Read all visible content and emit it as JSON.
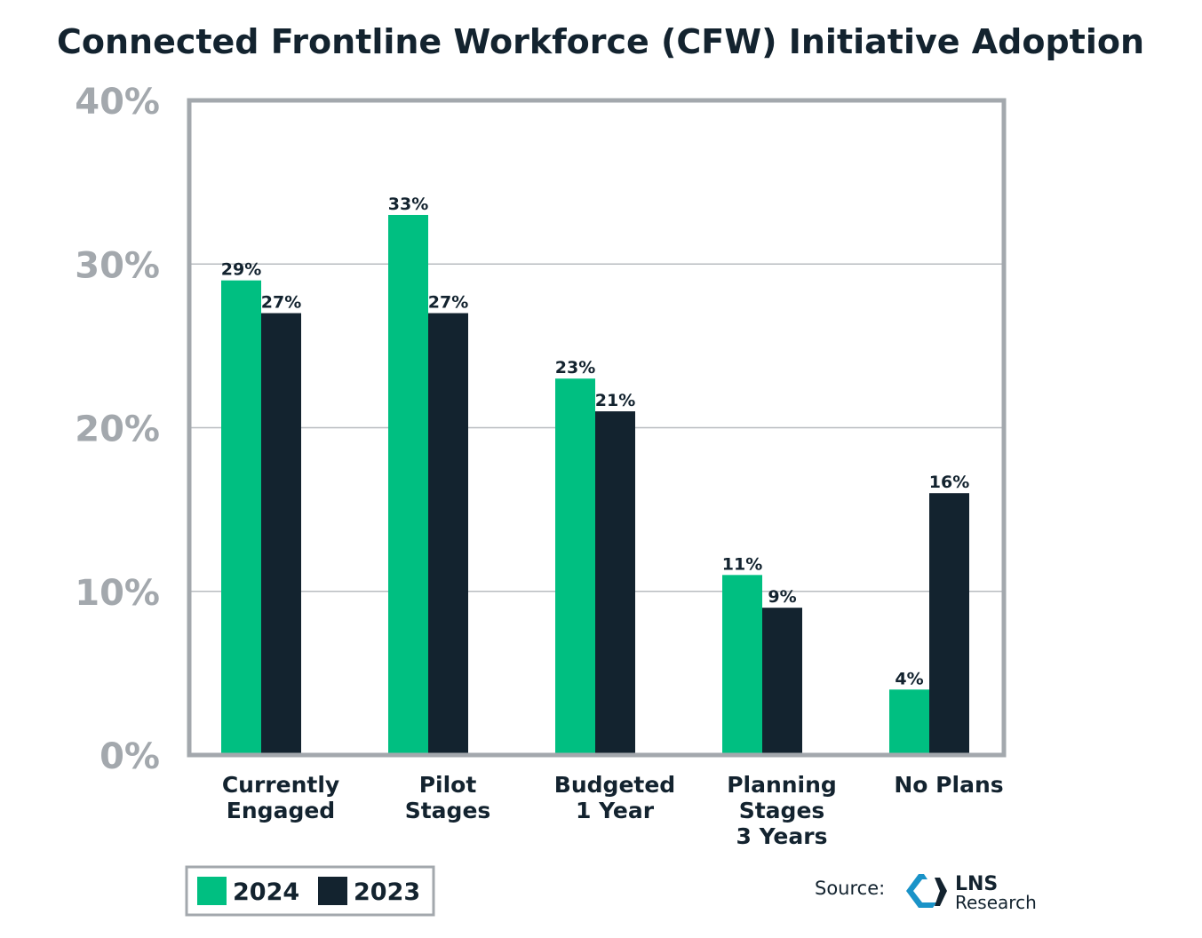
{
  "chart_data": {
    "type": "bar",
    "title": "Connected Frontline Workforce (CFW) Initiative Adoption",
    "categories": [
      [
        "Currently",
        "Engaged"
      ],
      [
        "Pilot",
        "Stages"
      ],
      [
        "Budgeted",
        "1 Year"
      ],
      [
        "Planning",
        "Stages",
        "3 Years"
      ],
      [
        "No Plans"
      ]
    ],
    "series": [
      {
        "name": "2024",
        "color": "#00bf81",
        "values": [
          29,
          33,
          23,
          11,
          4
        ],
        "labels": [
          "29%",
          "33%",
          "23%",
          "11%",
          "4%"
        ]
      },
      {
        "name": "2023",
        "color": "#13232f",
        "values": [
          27,
          27,
          21,
          9,
          16
        ],
        "labels": [
          "27%",
          "27%",
          "21%",
          "9%",
          "16%"
        ]
      }
    ],
    "yticks": [
      "0%",
      "10%",
      "20%",
      "30%",
      "40%"
    ],
    "ytick_values": [
      0,
      10,
      20,
      30,
      40
    ],
    "ylim": [
      0,
      40
    ],
    "grid": true,
    "legend_placement": "bottom-left",
    "xlabel": "",
    "ylabel": ""
  },
  "footer": {
    "source_label": "Source:",
    "logo_text": [
      "LNS",
      "Research"
    ]
  }
}
